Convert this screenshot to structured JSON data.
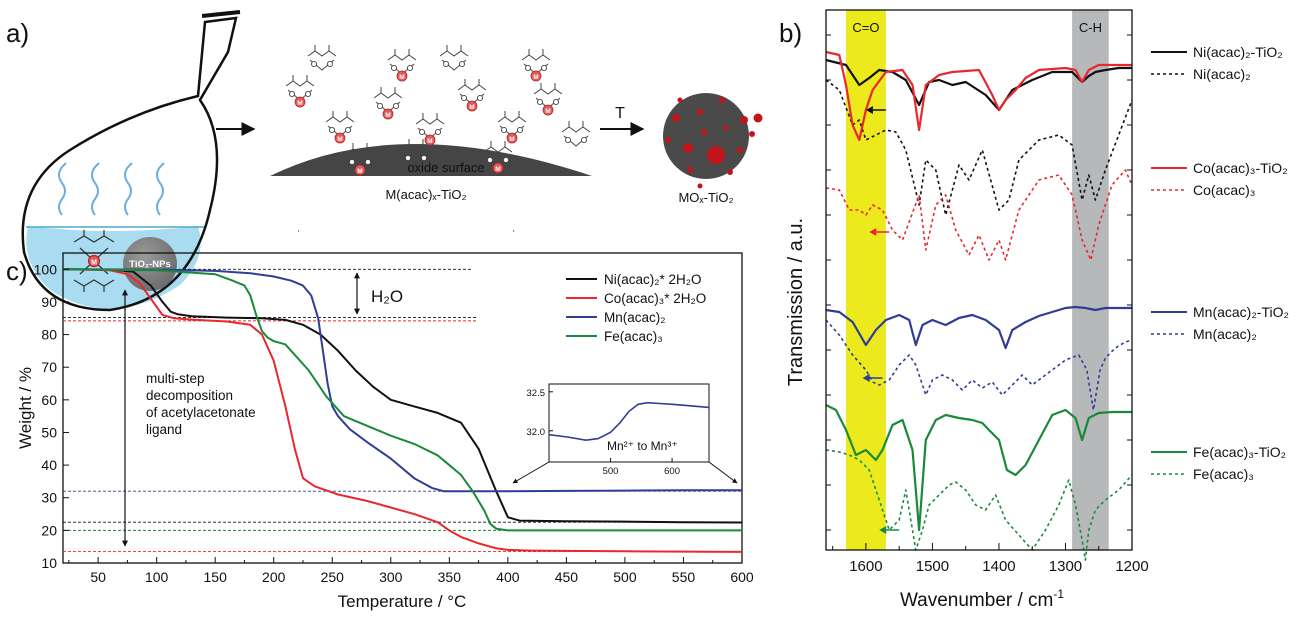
{
  "colors": {
    "ni": "#111111",
    "co": "#e8282d",
    "mn": "#2f3d96",
    "fe": "#1a8a3a",
    "co_band": "#ecea1d",
    "ch_band": "#b6b8ba",
    "particle_dark": "#4a4a4a",
    "particle_dots": "#c0151b",
    "liquid": "#a9dcf0"
  },
  "panel_a": {
    "label": "a)",
    "np_label": "TiO₂-NPs",
    "metal_symbol": "M",
    "surface_label": "oxide surface",
    "complex_label": "M(acac)ₓ-TiO₂",
    "arrow_T_label": "T",
    "product_label": "MOₓ-TiO₂"
  },
  "panel_b": {
    "label": "b)",
    "band_co": "C=O",
    "band_ch": "C-H",
    "ylabel": "Transmission / a.u.",
    "xlabel_main": "Wavenumber / cm",
    "xlabel_sup": "-1"
  },
  "panel_c": {
    "label": "c)",
    "ylabel": "Weight / %",
    "xlabel": "Temperature / °C",
    "annotation_h2o": "H₂O",
    "annotation_multistep": [
      "multi-step",
      "decomposition",
      "of acetylacetonate",
      "ligand"
    ],
    "inset_annotation": "Mn²⁺ to Mn³⁺"
  },
  "chart_data": [
    {
      "type": "line",
      "panel": "c",
      "xlabel": "Temperature / °C",
      "ylabel": "Weight / %",
      "xlim": [
        20,
        600
      ],
      "ylim": [
        10,
        105
      ],
      "x_ticks": [
        50,
        100,
        150,
        200,
        250,
        300,
        350,
        400,
        450,
        500,
        550,
        600
      ],
      "y_ticks": [
        10,
        20,
        30,
        40,
        50,
        60,
        70,
        80,
        90,
        100
      ],
      "legend_position": "top-right",
      "series": [
        {
          "name": "Ni(acac)₂* 2H₂O",
          "color_key": "ni",
          "x": [
            20,
            60,
            80,
            95,
            105,
            112,
            118,
            130,
            160,
            190,
            210,
            225,
            240,
            255,
            270,
            285,
            300,
            320,
            340,
            360,
            375,
            390,
            400,
            410,
            450,
            500,
            550,
            600
          ],
          "y": [
            100,
            99.9,
            99.3,
            95,
            90,
            87,
            86.2,
            85.6,
            85.2,
            85,
            84.5,
            83,
            80,
            75,
            69,
            64,
            60,
            58,
            56,
            53,
            45,
            32,
            24,
            23,
            22.8,
            22.7,
            22.5,
            22.4
          ]
        },
        {
          "name": "Co(acac)₃* 2H₂O",
          "color_key": "co",
          "x": [
            20,
            60,
            75,
            85,
            95,
            105,
            115,
            130,
            160,
            180,
            190,
            200,
            210,
            218,
            225,
            235,
            255,
            280,
            300,
            320,
            340,
            350,
            360,
            375,
            390,
            400,
            420,
            450,
            500,
            550,
            600
          ],
          "y": [
            100,
            99.7,
            98.5,
            96,
            91,
            86,
            85,
            84.6,
            84,
            83,
            80,
            72,
            58,
            45,
            36,
            33.5,
            31,
            29,
            27,
            25,
            22.5,
            20,
            18,
            16,
            14.5,
            14,
            13.8,
            13.7,
            13.6,
            13.5,
            13.4
          ]
        },
        {
          "name": "Mn(acac)₂",
          "color_key": "mn",
          "x": [
            20,
            100,
            150,
            180,
            200,
            215,
            225,
            232,
            238,
            242,
            246,
            250,
            255,
            265,
            280,
            300,
            320,
            335,
            345,
            360,
            400,
            450,
            500,
            550,
            600
          ],
          "y": [
            100,
            99.9,
            99.5,
            98.8,
            97.8,
            96.5,
            95,
            92,
            85,
            75,
            65,
            58,
            55,
            51,
            47,
            42,
            36,
            33,
            32,
            32,
            32,
            32.1,
            32.2,
            32.3,
            32.3
          ]
        },
        {
          "name": "Fe(acac)₃",
          "color_key": "fe",
          "x": [
            20,
            100,
            150,
            165,
            175,
            180,
            185,
            190,
            195,
            200,
            210,
            220,
            230,
            245,
            260,
            280,
            300,
            320,
            340,
            360,
            370,
            380,
            385,
            390,
            400,
            450,
            500,
            550,
            600
          ],
          "y": [
            100,
            99.7,
            98.5,
            96.5,
            95,
            92,
            86,
            81,
            79,
            78,
            77,
            73,
            69,
            61,
            55,
            52,
            49,
            46.5,
            43,
            37,
            32,
            26,
            22,
            20.5,
            20,
            20,
            20,
            20,
            20
          ]
        }
      ],
      "reference_lines": [
        {
          "y": 100,
          "color_key": "ni"
        },
        {
          "y": 85.2,
          "color_key": "ni"
        },
        {
          "y": 84.2,
          "color_key": "co"
        },
        {
          "y": 32,
          "color_key": "mn"
        },
        {
          "y": 22.5,
          "color_key": "ni"
        },
        {
          "y": 20,
          "color_key": "fe"
        },
        {
          "y": 13.5,
          "color_key": "co"
        }
      ]
    },
    {
      "type": "line",
      "panel": "c-inset",
      "xlim": [
        400,
        660
      ],
      "ylim": [
        31.6,
        32.6
      ],
      "x_ticks": [
        500,
        600
      ],
      "y_ticks": [
        32.0,
        32.5
      ],
      "series": [
        {
          "name": "Mn(acac)₂",
          "color_key": "mn",
          "x": [
            400,
            430,
            460,
            480,
            500,
            515,
            530,
            545,
            560,
            580,
            600,
            630,
            660
          ],
          "y": [
            31.95,
            31.92,
            31.88,
            31.9,
            31.98,
            32.1,
            32.25,
            32.34,
            32.36,
            32.35,
            32.34,
            32.32,
            32.3
          ]
        }
      ]
    },
    {
      "type": "line",
      "panel": "b",
      "xlabel": "Wavenumber / cm-1",
      "ylabel": "Transmission / a.u.",
      "xlim": [
        1660,
        1200
      ],
      "x_ticks": [
        1600,
        1500,
        1400,
        1300,
        1200
      ],
      "highlight_bands": [
        {
          "label": "C=O",
          "from": 1630,
          "to": 1570,
          "color_key": "co_band"
        },
        {
          "label": "C-H",
          "from": 1290,
          "to": 1235,
          "color_key": "ch_band"
        }
      ],
      "series": [
        {
          "name": "Ni(acac)₂-TiO₂",
          "color_key": "ni",
          "dashed": false,
          "x": [
            1660,
            1630,
            1610,
            1595,
            1580,
            1560,
            1540,
            1520,
            1505,
            1490,
            1470,
            1450,
            1420,
            1400,
            1380,
            1350,
            1320,
            1290,
            1275,
            1265,
            1255,
            1240,
            1220,
            1200
          ],
          "y": [
            50,
            55,
            75,
            68,
            60,
            62,
            70,
            95,
            72,
            70,
            75,
            72,
            85,
            100,
            80,
            70,
            62,
            62,
            72,
            66,
            62,
            60,
            58,
            58
          ]
        },
        {
          "name": "Ni(acac)₂",
          "color_key": "ni",
          "dashed": true,
          "x": [
            1660,
            1640,
            1620,
            1610,
            1600,
            1585,
            1570,
            1555,
            1540,
            1520,
            1510,
            1495,
            1480,
            1460,
            1445,
            1425,
            1400,
            1385,
            1370,
            1340,
            1310,
            1290,
            1275,
            1265,
            1255,
            1240,
            1220,
            1200
          ],
          "y": [
            70,
            80,
            115,
            110,
            130,
            125,
            120,
            122,
            140,
            195,
            150,
            160,
            205,
            155,
            170,
            140,
            200,
            190,
            150,
            130,
            125,
            135,
            190,
            165,
            190,
            160,
            125,
            90
          ]
        },
        {
          "name": "Co(acac)₃-TiO₂",
          "color_key": "co",
          "dashed": false,
          "x": [
            1660,
            1640,
            1630,
            1620,
            1610,
            1600,
            1590,
            1570,
            1545,
            1530,
            1520,
            1510,
            1490,
            1470,
            1430,
            1410,
            1400,
            1390,
            1375,
            1360,
            1340,
            1300,
            1285,
            1275,
            1265,
            1250,
            1230,
            1210,
            1200
          ],
          "y": [
            42,
            45,
            75,
            115,
            130,
            100,
            80,
            62,
            60,
            75,
            120,
            75,
            65,
            62,
            60,
            85,
            100,
            90,
            80,
            68,
            60,
            58,
            60,
            72,
            60,
            55,
            55,
            55,
            55
          ]
        },
        {
          "name": "Co(acac)₃",
          "color_key": "co",
          "dashed": true,
          "x": [
            1660,
            1640,
            1625,
            1610,
            1600,
            1590,
            1575,
            1560,
            1545,
            1520,
            1510,
            1495,
            1480,
            1465,
            1445,
            1430,
            1415,
            1400,
            1390,
            1370,
            1340,
            1310,
            1290,
            1275,
            1262,
            1250,
            1230,
            1210,
            1200
          ],
          "y": [
            178,
            180,
            200,
            200,
            205,
            195,
            200,
            220,
            230,
            185,
            240,
            195,
            185,
            220,
            245,
            225,
            250,
            230,
            250,
            200,
            170,
            165,
            185,
            230,
            250,
            215,
            175,
            160,
            175
          ]
        },
        {
          "name": "Mn(acac)₂-TiO₂",
          "color_key": "mn",
          "dashed": false,
          "x": [
            1660,
            1640,
            1620,
            1600,
            1585,
            1570,
            1550,
            1535,
            1525,
            1515,
            1500,
            1480,
            1460,
            1440,
            1420,
            1400,
            1390,
            1380,
            1360,
            1340,
            1320,
            1300,
            1285,
            1270,
            1255,
            1240,
            1220,
            1200
          ],
          "y": [
            300,
            302,
            312,
            335,
            320,
            310,
            305,
            310,
            335,
            315,
            310,
            315,
            308,
            305,
            310,
            320,
            338,
            320,
            312,
            306,
            302,
            298,
            297,
            298,
            300,
            298,
            298,
            298
          ]
        },
        {
          "name": "Mn(acac)₂",
          "color_key": "mn",
          "dashed": true,
          "x": [
            1660,
            1640,
            1620,
            1600,
            1590,
            1580,
            1565,
            1550,
            1535,
            1525,
            1510,
            1500,
            1485,
            1470,
            1455,
            1440,
            1425,
            1410,
            1395,
            1380,
            1365,
            1350,
            1330,
            1300,
            1280,
            1268,
            1258,
            1248,
            1240,
            1225,
            1210,
            1200
          ],
          "y": [
            310,
            325,
            345,
            360,
            372,
            375,
            370,
            355,
            345,
            355,
            385,
            370,
            365,
            370,
            380,
            370,
            378,
            372,
            385,
            375,
            365,
            375,
            365,
            350,
            345,
            360,
            400,
            360,
            348,
            338,
            332,
            330
          ]
        },
        {
          "name": "Fe(acac)₃-TiO₂",
          "color_key": "fe",
          "dashed": false,
          "x": [
            1660,
            1645,
            1630,
            1615,
            1600,
            1585,
            1575,
            1560,
            1545,
            1530,
            1520,
            1510,
            1495,
            1480,
            1460,
            1440,
            1425,
            1415,
            1400,
            1388,
            1375,
            1360,
            1340,
            1320,
            1300,
            1285,
            1275,
            1265,
            1250,
            1230,
            1210,
            1200
          ],
          "y": [
            395,
            400,
            420,
            445,
            440,
            450,
            440,
            415,
            410,
            440,
            520,
            430,
            410,
            405,
            408,
            410,
            413,
            420,
            430,
            460,
            465,
            455,
            430,
            405,
            400,
            408,
            430,
            408,
            403,
            402,
            402,
            402
          ]
        },
        {
          "name": "Fe(acac)₃",
          "color_key": "fe",
          "dashed": true,
          "x": [
            1660,
            1640,
            1625,
            1610,
            1595,
            1585,
            1575,
            1565,
            1550,
            1540,
            1525,
            1515,
            1505,
            1490,
            1475,
            1465,
            1450,
            1435,
            1420,
            1405,
            1390,
            1370,
            1350,
            1330,
            1310,
            1295,
            1285,
            1275,
            1270,
            1265,
            1255,
            1240,
            1220,
            1200
          ],
          "y": [
            440,
            442,
            445,
            450,
            460,
            480,
            500,
            520,
            510,
            480,
            540,
            520,
            495,
            485,
            475,
            472,
            480,
            495,
            500,
            485,
            510,
            525,
            540,
            520,
            495,
            470,
            495,
            530,
            550,
            520,
            500,
            490,
            480,
            465
          ]
        }
      ]
    }
  ]
}
